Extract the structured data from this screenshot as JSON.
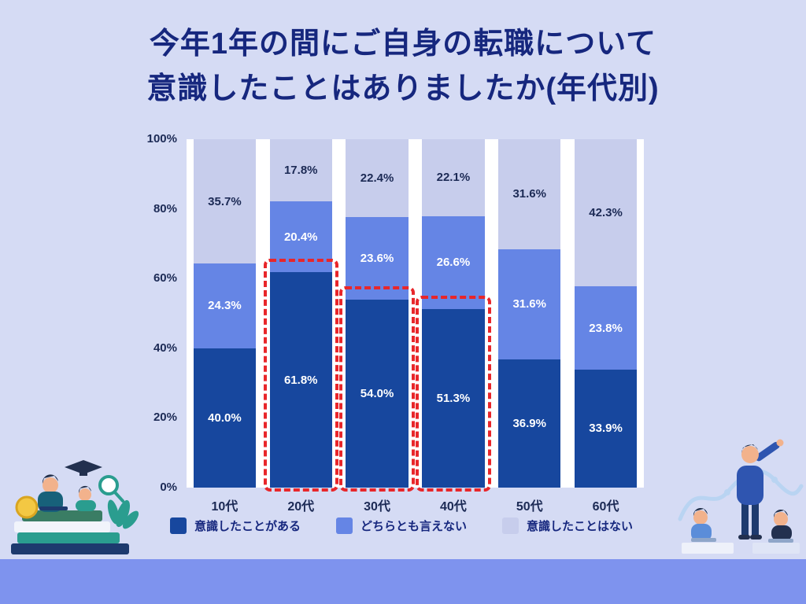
{
  "page": {
    "background": "#d5dbf4",
    "band_color": "#7e93ee"
  },
  "title": {
    "line1": "今年1年の間にご自身の転職について",
    "line2": "意識したことはありましたか(年代別)",
    "color": "#16277e"
  },
  "chart_data": {
    "type": "bar",
    "stacked": true,
    "percent": true,
    "title": "今年1年の間にご自身の転職について意識したことはありましたか(年代別)",
    "categories": [
      "10代",
      "20代",
      "30代",
      "40代",
      "50代",
      "60代"
    ],
    "series": [
      {
        "name": "意識したことがある",
        "color": "#17479e",
        "label_color": "#ffffff",
        "values": [
          40.0,
          61.8,
          54.0,
          51.3,
          36.9,
          33.9
        ]
      },
      {
        "name": "どちらとも言えない",
        "color": "#6585e5",
        "label_color": "#ffffff",
        "values": [
          24.3,
          20.4,
          23.6,
          26.6,
          31.6,
          23.8
        ]
      },
      {
        "name": "意識したことはない",
        "color": "#c7cdec",
        "label_color": "#1c2a55",
        "values": [
          35.7,
          17.8,
          22.4,
          22.1,
          31.6,
          42.3
        ]
      }
    ],
    "y_ticks": [
      0,
      20,
      40,
      60,
      80,
      100
    ],
    "y_tick_labels": [
      "0%",
      "20%",
      "40%",
      "60%",
      "80%",
      "100%"
    ],
    "ylim": [
      0,
      100
    ],
    "grid": false,
    "plot_background": "#ffffff",
    "legend_position": "bottom",
    "highlight": {
      "category_indexes": [
        1,
        2,
        3
      ],
      "color": "#e8262a",
      "style": "dashed-box"
    }
  }
}
